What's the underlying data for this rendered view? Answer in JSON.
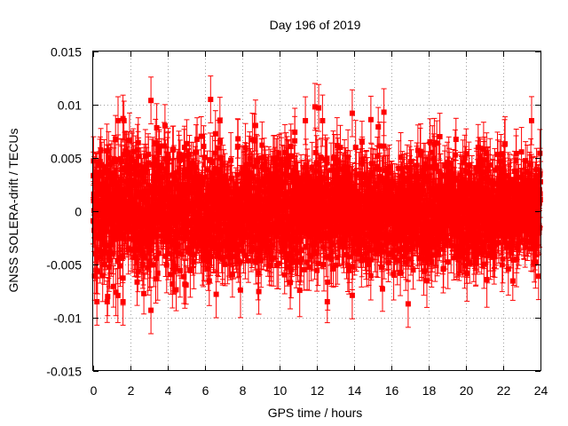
{
  "chart_data": {
    "type": "scatter",
    "title": "Day 196 of 2019",
    "xlabel": "GPS time / hours",
    "ylabel": "GNSS SOLERA-drift / TECUs",
    "xlim": [
      0,
      24
    ],
    "ylim": [
      -0.015,
      0.015
    ],
    "x_ticks": [
      0,
      2,
      4,
      6,
      8,
      10,
      12,
      14,
      16,
      18,
      20,
      22,
      24
    ],
    "x_tick_labels": [
      "0",
      "2",
      "4",
      "6",
      "8",
      "10",
      "12",
      "14",
      "16",
      "18",
      "20",
      "22",
      "24"
    ],
    "y_ticks": [
      -0.015,
      -0.01,
      -0.005,
      0,
      0.005,
      0.01,
      0.015
    ],
    "y_tick_labels": [
      "-0.015",
      "-0.01",
      "-0.005",
      "0",
      "0.005",
      "0.01",
      "0.015"
    ],
    "grid": true,
    "series": [
      {
        "name": "SOLERA-drift",
        "color": "#ff0000",
        "marker": "square",
        "error_bars": true,
        "description_stats": {
          "n_points": 2880,
          "x_start": 0,
          "x_end": 24,
          "mean": 0.0,
          "noise_std_early": 0.003,
          "noise_std_late": 0.0022,
          "typical_error": 0.0022
        },
        "notable_points": [
          {
            "x": 3.1,
            "y": 0.0104
          },
          {
            "x": 6.3,
            "y": 0.0105
          },
          {
            "x": 11.9,
            "y": 0.0098
          },
          {
            "x": 12.1,
            "y": 0.0097
          },
          {
            "x": 15.6,
            "y": 0.0093
          },
          {
            "x": 13.9,
            "y": 0.0092
          },
          {
            "x": 1.6,
            "y": 0.0087
          },
          {
            "x": 6.8,
            "y": 0.0085
          },
          {
            "x": 14.9,
            "y": 0.0086
          },
          {
            "x": 3.1,
            "y": -0.0093
          },
          {
            "x": 16.9,
            "y": -0.0087
          },
          {
            "x": 1.6,
            "y": -0.0085
          },
          {
            "x": 0.2,
            "y": -0.0085
          },
          {
            "x": 13.9,
            "y": -0.0079
          },
          {
            "x": 6.6,
            "y": -0.0078
          },
          {
            "x": 18.6,
            "y": 0.007
          },
          {
            "x": 23.9,
            "y": -0.0061
          }
        ]
      }
    ]
  }
}
